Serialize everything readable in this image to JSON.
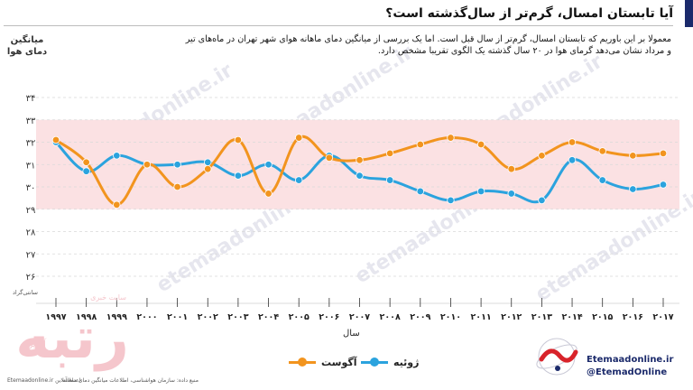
{
  "header": {
    "title": "آیا تابستان امسال، گرم‌تر از سال‌گذشته است؟",
    "description": "معمولا بر این باوریم که تابستان امسال، گرم‌تر از سال قبل است. اما یک بررسی از میانگین دمای ماهانه هوای شهر تهران در ماه‌های تیر و مرداد نشان می‌دهد گرمای هوا در ۲۰ سال گذشته یک الگوی تقریبا مشخص دارد."
  },
  "watermark_text": "etemaadonline.ir",
  "footer": {
    "source": "منبع داده: سازمان هواشناسی، اطلاعات میانگین دمای ماهانه",
    "site_fa": "Etemaadonline.ir  اعتمادآنلاین",
    "brand_web": "Etemaadonline.ir",
    "brand_handle": "@EtemadOnline",
    "logo_text": "رتبه",
    "logo_sub": "آنلاین",
    "logo_sub2": "سایت خبری"
  },
  "chart_data": {
    "type": "line",
    "ylabel": "میانگین دمای هوا",
    "xlabel": "سال",
    "unit": "سانتی‌گراد",
    "ylim": [
      26,
      34
    ],
    "yticks": [
      "۲۶",
      "۲۷",
      "۲۸",
      "۲۹",
      "۳۰",
      "۳۱",
      "۳۲",
      "۳۳",
      "۳۴"
    ],
    "categories": [
      "۱۹۹۷",
      "۱۹۹۸",
      "۱۹۹۹",
      "۲۰۰۰",
      "۲۰۰۱",
      "۲۰۰۲",
      "۲۰۰۳",
      "۲۰۰۴",
      "۲۰۰۵",
      "۲۰۰۶",
      "۲۰۰۷",
      "۲۰۰۸",
      "۲۰۰۹",
      "۲۰۱۰",
      "۲۰۱۱",
      "۲۰۱۲",
      "۲۰۱۳",
      "۲۰۱۴",
      "۲۰۱۵",
      "۲۰۱۶",
      "۲۰۱۷"
    ],
    "x": [
      1997,
      1998,
      1999,
      2000,
      2001,
      2002,
      2003,
      2004,
      2005,
      2006,
      2007,
      2008,
      2009,
      2010,
      2011,
      2012,
      2013,
      2014,
      2015,
      2016,
      2017
    ],
    "band": [
      29,
      33
    ],
    "grid": true,
    "legend_position": "bottom",
    "series": [
      {
        "name": "آگوست",
        "color": "#f2941e",
        "values": [
          32.1,
          31.1,
          29.2,
          31.0,
          30.0,
          30.8,
          32.1,
          29.7,
          32.2,
          31.3,
          31.2,
          31.5,
          31.9,
          32.2,
          31.9,
          30.8,
          31.4,
          32.0,
          31.6,
          31.4,
          31.5
        ]
      },
      {
        "name": "ژوئیه",
        "color": "#2ba3de",
        "values": [
          32.0,
          30.7,
          31.4,
          31.0,
          31.0,
          31.1,
          30.5,
          31.0,
          30.3,
          31.4,
          30.5,
          30.3,
          29.8,
          29.4,
          29.8,
          29.7,
          29.4,
          31.2,
          30.3,
          29.9,
          30.1
        ]
      }
    ]
  }
}
